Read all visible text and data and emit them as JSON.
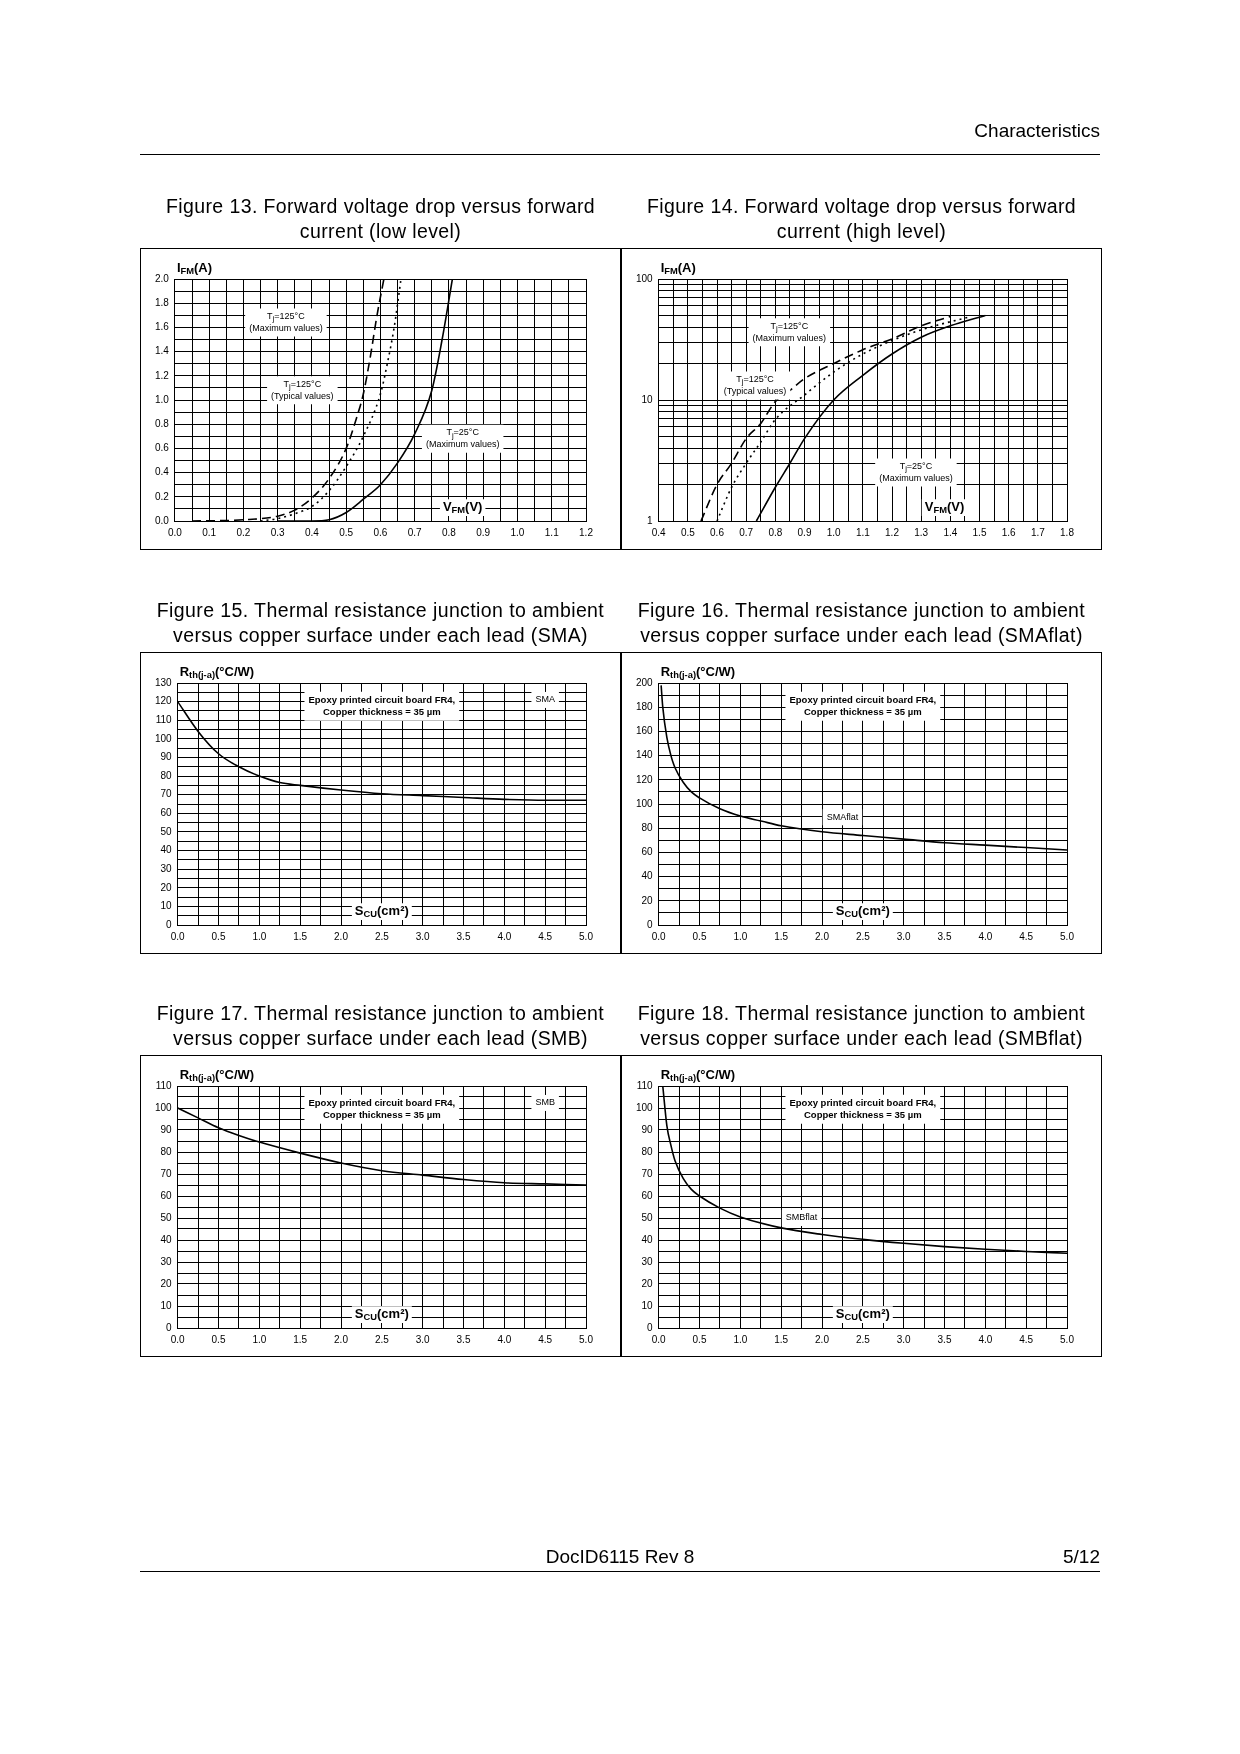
{
  "chart_data": [
    {
      "type": "line",
      "title": "Figure 13. Forward voltage drop versus forward current (low level)",
      "xlabel": "V$_{FM}$(V)",
      "ylabel": "I$_{FM}$(A)",
      "grid": true,
      "xlim": [
        0,
        1.2
      ],
      "ylim": [
        0,
        2
      ],
      "xticks": [
        {
          "value": 0,
          "label": "0.0"
        },
        {
          "value": 0.05,
          "label": null
        },
        0.1,
        {
          "value": 0.15,
          "label": null
        },
        0.2,
        {
          "value": 0.25,
          "label": null
        },
        0.3,
        {
          "value": 0.35,
          "label": null
        },
        0.4,
        {
          "value": 0.45,
          "label": null
        },
        0.5,
        {
          "value": 0.55,
          "label": null
        },
        0.6,
        {
          "value": 0.65,
          "label": null
        },
        0.7,
        {
          "value": 0.75,
          "label": null
        },
        0.8,
        {
          "value": 0.85,
          "label": null
        },
        0.9,
        {
          "value": 0.95,
          "label": null
        },
        {
          "value": 1,
          "label": "1.0"
        },
        {
          "value": 1.05,
          "label": null
        },
        1.1,
        {
          "value": 1.15,
          "label": null
        },
        1.2
      ],
      "yticks": [
        {
          "value": 0,
          "label": "0.0"
        },
        {
          "value": 0.1,
          "label": null
        },
        0.2,
        {
          "value": 0.3,
          "label": null
        },
        0.4,
        {
          "value": 0.5,
          "label": null
        },
        0.6,
        {
          "value": 0.7,
          "label": null
        },
        0.8,
        {
          "value": 0.9,
          "label": null
        },
        {
          "value": 1,
          "label": "1.0"
        },
        {
          "value": 1.1,
          "label": null
        },
        1.2,
        {
          "value": 1.3,
          "label": null
        },
        1.4,
        {
          "value": 1.5,
          "label": null
        },
        1.6,
        {
          "value": 1.7,
          "label": null
        },
        1.8,
        {
          "value": 1.9,
          "label": null
        },
        {
          "value": 2,
          "label": "2.0"
        }
      ],
      "series": [
        {
          "color": "#000000",
          "line_style": "dashed",
          "x": [
            0.05,
            0.2,
            0.3,
            0.35,
            0.4,
            0.45,
            0.5,
            0.53,
            0.55,
            0.57,
            0.59,
            0.61
          ],
          "values": [
            0,
            0.01,
            0.04,
            0.09,
            0.19,
            0.35,
            0.6,
            0.85,
            1.05,
            1.35,
            1.7,
            2.0
          ]
        },
        {
          "color": "#000000",
          "line_style": "dotted",
          "x": [
            0.25,
            0.3,
            0.35,
            0.4,
            0.45,
            0.5,
            0.55,
            0.6,
            0.62,
            0.64,
            0.66
          ],
          "values": [
            0,
            0.02,
            0.06,
            0.12,
            0.25,
            0.45,
            0.7,
            1.05,
            1.3,
            1.6,
            2.0
          ]
        },
        {
          "color": "#000000",
          "line_style": "solid",
          "x": [
            0.3,
            0.4,
            0.45,
            0.5,
            0.55,
            0.6,
            0.65,
            0.7,
            0.75,
            0.78,
            0.81
          ],
          "values": [
            0,
            0,
            0.01,
            0.07,
            0.18,
            0.3,
            0.48,
            0.72,
            1.08,
            1.5,
            2.0
          ]
        }
      ],
      "annotations": [
        "Characteristics",
        "T$_{j}$=125°C\n(Maximum values)",
        "T$_{j}$=125°C\n(Typical values)",
        "T$_{j}$=25°C\n(Maximum values)"
      ]
    },
    {
      "type": "line",
      "title": "Figure 14. Forward voltage drop versus forward current (high level)",
      "xlabel": "V$_{FM}$(V)",
      "ylabel": "I$_{FM}$(A)",
      "grid": true,
      "log": "y",
      "xlim": [
        0.4,
        1.8
      ],
      "ylim": [
        1,
        100
      ],
      "xticks": [
        0.4,
        {
          "value": 0.45,
          "label": null
        },
        0.5,
        {
          "value": 0.55,
          "label": null
        },
        0.6,
        {
          "value": 0.65,
          "label": null
        },
        0.7,
        {
          "value": 0.75,
          "label": null
        },
        0.8,
        {
          "value": 0.85,
          "label": null
        },
        0.9,
        {
          "value": 0.95,
          "label": null
        },
        {
          "value": 1,
          "label": "1.0"
        },
        {
          "value": 1.05,
          "label": null
        },
        1.1,
        {
          "value": 1.15,
          "label": null
        },
        1.2,
        {
          "value": 1.25,
          "label": null
        },
        1.3,
        {
          "value": 1.35,
          "label": null
        },
        1.4,
        {
          "value": 1.45,
          "label": null
        },
        1.5,
        {
          "value": 1.55,
          "label": null
        },
        1.6,
        {
          "value": 1.65,
          "label": null
        },
        1.7,
        {
          "value": 1.75,
          "label": null
        },
        1.8
      ],
      "yticks": [
        1,
        {
          "value": 2,
          "label": null
        },
        {
          "value": 3,
          "label": null
        },
        {
          "value": 4,
          "label": null
        },
        {
          "value": 5,
          "label": null
        },
        {
          "value": 6,
          "label": null
        },
        {
          "value": 7,
          "label": null
        },
        {
          "value": 8,
          "label": null
        },
        {
          "value": 9,
          "label": null
        },
        10,
        {
          "value": 20,
          "label": null
        },
        {
          "value": 30,
          "label": null
        },
        {
          "value": 40,
          "label": null
        },
        {
          "value": 50,
          "label": null
        },
        {
          "value": 60,
          "label": null
        },
        {
          "value": 70,
          "label": null
        },
        {
          "value": 80,
          "label": null
        },
        {
          "value": 90,
          "label": null
        },
        100
      ],
      "series": [
        {
          "color": "#000000",
          "line_style": "dashed",
          "x": [
            0.545,
            0.6,
            0.65,
            0.7,
            0.75,
            0.8,
            0.85,
            0.9,
            1.0,
            1.1,
            1.2,
            1.3,
            1.4
          ],
          "values": [
            1,
            2,
            3,
            4.8,
            6.4,
            9.7,
            12,
            15,
            20,
            26,
            32,
            41,
            49
          ]
        },
        {
          "color": "#000000",
          "line_style": "dotted",
          "x": [
            0.6,
            0.65,
            0.7,
            0.75,
            0.8,
            0.9,
            1.0,
            1.1,
            1.2,
            1.3,
            1.47
          ],
          "values": [
            1,
            1.9,
            3,
            4.5,
            6.9,
            11,
            17,
            24,
            31,
            38,
            49
          ]
        },
        {
          "color": "#000000",
          "line_style": "solid",
          "x": [
            0.735,
            0.8,
            0.85,
            0.9,
            1.0,
            1.1,
            1.2,
            1.3,
            1.4,
            1.52
          ],
          "values": [
            1,
            1.9,
            3,
            4.8,
            10,
            16,
            24,
            33,
            41,
            50
          ]
        }
      ],
      "annotations": [
        "T$_{j}$=125°C\n(Maximum values)",
        "T$_{j}$=125°C\n(Typical values)",
        "T$_{j}$=25°C\n(Maximum values)"
      ]
    },
    {
      "type": "line",
      "title": "Figure 15. Thermal resistance junction to ambient versus copper surface under each lead (SMA)",
      "xlabel": "S$_{CU}$(cm²)",
      "ylabel": "R$_{th(j-a)}$(°C/W)",
      "grid": true,
      "xlim": [
        0,
        5
      ],
      "ylim": [
        0,
        130
      ],
      "xticks": [
        {
          "value": 0,
          "label": "0.0"
        },
        {
          "value": 0.25,
          "label": null
        },
        0.5,
        {
          "value": 0.75,
          "label": null
        },
        {
          "value": 1,
          "label": "1.0"
        },
        {
          "value": 1.25,
          "label": null
        },
        1.5,
        {
          "value": 1.75,
          "label": null
        },
        {
          "value": 2,
          "label": "2.0"
        },
        {
          "value": 2.25,
          "label": null
        },
        2.5,
        {
          "value": 2.75,
          "label": null
        },
        {
          "value": 3,
          "label": "3.0"
        },
        {
          "value": 3.25,
          "label": null
        },
        3.5,
        {
          "value": 3.75,
          "label": null
        },
        {
          "value": 4,
          "label": "4.0"
        },
        {
          "value": 4.25,
          "label": null
        },
        4.5,
        {
          "value": 4.75,
          "label": null
        },
        {
          "value": 5,
          "label": "5.0"
        }
      ],
      "yticks": [
        0,
        {
          "value": 5,
          "label": null
        },
        10,
        {
          "value": 15,
          "label": null
        },
        20,
        {
          "value": 25,
          "label": null
        },
        30,
        {
          "value": 35,
          "label": null
        },
        40,
        {
          "value": 45,
          "label": null
        },
        50,
        {
          "value": 55,
          "label": null
        },
        60,
        {
          "value": 65,
          "label": null
        },
        70,
        {
          "value": 75,
          "label": null
        },
        80,
        {
          "value": 85,
          "label": null
        },
        90,
        {
          "value": 95,
          "label": null
        },
        100,
        {
          "value": 105,
          "label": null
        },
        110,
        {
          "value": 115,
          "label": null
        },
        120,
        {
          "value": 125,
          "label": null
        },
        130
      ],
      "series": [
        {
          "color": "#000000",
          "line_style": "solid",
          "x": [
            0,
            0.25,
            0.5,
            0.75,
            1,
            1.25,
            1.5,
            2,
            2.5,
            3,
            3.5,
            4,
            4.5,
            5
          ],
          "values": [
            120,
            104,
            92,
            85,
            80,
            76.5,
            75,
            72.5,
            70.5,
            69.5,
            68.5,
            67.5,
            67,
            67
          ]
        }
      ],
      "annotations": [
        "Epoxy printed circuit board FR4,\nCopper thickness = 35 µm",
        "SMA"
      ]
    },
    {
      "type": "line",
      "title": "Figure 16. Thermal resistance junction to ambient versus copper surface under each lead (SMAflat)",
      "xlabel": "S$_{CU}$(cm²)",
      "ylabel": "R$_{th(j-a)}$(°C/W)",
      "grid": true,
      "xlim": [
        0,
        5
      ],
      "ylim": [
        0,
        200
      ],
      "xticks": [
        {
          "value": 0,
          "label": "0.0"
        },
        {
          "value": 0.25,
          "label": null
        },
        0.5,
        {
          "value": 0.75,
          "label": null
        },
        {
          "value": 1,
          "label": "1.0"
        },
        {
          "value": 1.25,
          "label": null
        },
        1.5,
        {
          "value": 1.75,
          "label": null
        },
        {
          "value": 2,
          "label": "2.0"
        },
        {
          "value": 2.25,
          "label": null
        },
        2.5,
        {
          "value": 2.75,
          "label": null
        },
        {
          "value": 3,
          "label": "3.0"
        },
        {
          "value": 3.25,
          "label": null
        },
        3.5,
        {
          "value": 3.75,
          "label": null
        },
        {
          "value": 4,
          "label": "4.0"
        },
        {
          "value": 4.25,
          "label": null
        },
        4.5,
        {
          "value": 4.75,
          "label": null
        },
        {
          "value": 5,
          "label": "5.0"
        }
      ],
      "yticks": [
        0,
        {
          "value": 10,
          "label": null
        },
        20,
        {
          "value": 30,
          "label": null
        },
        40,
        {
          "value": 50,
          "label": null
        },
        60,
        {
          "value": 70,
          "label": null
        },
        80,
        {
          "value": 90,
          "label": null
        },
        100,
        {
          "value": 110,
          "label": null
        },
        120,
        {
          "value": 130,
          "label": null
        },
        140,
        {
          "value": 150,
          "label": null
        },
        160,
        {
          "value": 170,
          "label": null
        },
        180,
        {
          "value": 190,
          "label": null
        },
        200
      ],
      "series": [
        {
          "color": "#000000",
          "line_style": "solid",
          "x": [
            0.03,
            0.05,
            0.1,
            0.15,
            0.2,
            0.3,
            0.4,
            0.5,
            0.75,
            1,
            1.25,
            1.5,
            2,
            2.5,
            3,
            3.5,
            4,
            4.5,
            5
          ],
          "values": [
            198,
            180,
            155,
            140,
            130,
            118,
            110,
            105,
            96,
            90,
            86,
            82,
            77,
            74,
            71,
            68,
            66,
            64,
            62
          ]
        }
      ],
      "annotations": [
        "Epoxy printed circuit board FR4,\nCopper thickness = 35 µm",
        "SMAflat"
      ]
    },
    {
      "type": "line",
      "title": "Figure 17. Thermal resistance junction to ambient versus copper surface under each lead (SMB)",
      "xlabel": "S$_{CU}$(cm²)",
      "ylabel": "R$_{th(j-a)}$(°C/W)",
      "grid": true,
      "xlim": [
        0,
        5
      ],
      "ylim": [
        0,
        110
      ],
      "xticks": [
        {
          "value": 0,
          "label": "0.0"
        },
        {
          "value": 0.25,
          "label": null
        },
        0.5,
        {
          "value": 0.75,
          "label": null
        },
        {
          "value": 1,
          "label": "1.0"
        },
        {
          "value": 1.25,
          "label": null
        },
        1.5,
        {
          "value": 1.75,
          "label": null
        },
        {
          "value": 2,
          "label": "2.0"
        },
        {
          "value": 2.25,
          "label": null
        },
        2.5,
        {
          "value": 2.75,
          "label": null
        },
        {
          "value": 3,
          "label": "3.0"
        },
        {
          "value": 3.25,
          "label": null
        },
        3.5,
        {
          "value": 3.75,
          "label": null
        },
        {
          "value": 4,
          "label": "4.0"
        },
        {
          "value": 4.25,
          "label": null
        },
        4.5,
        {
          "value": 4.75,
          "label": null
        },
        {
          "value": 5,
          "label": "5.0"
        }
      ],
      "yticks": [
        0,
        {
          "value": 5,
          "label": null
        },
        10,
        {
          "value": 15,
          "label": null
        },
        20,
        {
          "value": 25,
          "label": null
        },
        30,
        {
          "value": 35,
          "label": null
        },
        40,
        {
          "value": 45,
          "label": null
        },
        50,
        {
          "value": 55,
          "label": null
        },
        60,
        {
          "value": 65,
          "label": null
        },
        70,
        {
          "value": 75,
          "label": null
        },
        80,
        {
          "value": 85,
          "label": null
        },
        90,
        {
          "value": 95,
          "label": null
        },
        100,
        {
          "value": 105,
          "label": null
        },
        110
      ],
      "series": [
        {
          "color": "#000000",
          "line_style": "solid",
          "x": [
            0,
            0.25,
            0.5,
            0.75,
            1,
            1.5,
            2,
            2.5,
            3,
            3.5,
            4,
            4.5,
            5
          ],
          "values": [
            100,
            95.5,
            91,
            87.5,
            84.5,
            79.5,
            75,
            71.5,
            69.5,
            67.5,
            66,
            65.5,
            65
          ]
        }
      ],
      "annotations": [
        "Epoxy printed circuit board FR4,\nCopper thickness = 35 µm",
        "SMB"
      ]
    },
    {
      "type": "line",
      "title": "Figure 18. Thermal resistance junction to ambient versus copper surface under each lead (SMBflat)",
      "xlabel": "S$_{CU}$(cm²)",
      "ylabel": "R$_{th(j-a)}$(°C/W)",
      "grid": true,
      "xlim": [
        0,
        5
      ],
      "ylim": [
        0,
        110
      ],
      "xticks": [
        {
          "value": 0,
          "label": "0.0"
        },
        {
          "value": 0.25,
          "label": null
        },
        0.5,
        {
          "value": 0.75,
          "label": null
        },
        {
          "value": 1,
          "label": "1.0"
        },
        {
          "value": 1.25,
          "label": null
        },
        1.5,
        {
          "value": 1.75,
          "label": null
        },
        {
          "value": 2,
          "label": "2.0"
        },
        {
          "value": 2.25,
          "label": null
        },
        2.5,
        {
          "value": 2.75,
          "label": null
        },
        {
          "value": 3,
          "label": "3.0"
        },
        {
          "value": 3.25,
          "label": null
        },
        3.5,
        {
          "value": 3.75,
          "label": null
        },
        {
          "value": 4,
          "label": "4.0"
        },
        {
          "value": 4.25,
          "label": null
        },
        4.5,
        {
          "value": 4.75,
          "label": null
        },
        {
          "value": 5,
          "label": "5.0"
        }
      ],
      "yticks": [
        0,
        {
          "value": 5,
          "label": null
        },
        10,
        {
          "value": 15,
          "label": null
        },
        20,
        {
          "value": 25,
          "label": null
        },
        30,
        {
          "value": 35,
          "label": null
        },
        40,
        {
          "value": 45,
          "label": null
        },
        50,
        {
          "value": 55,
          "label": null
        },
        60,
        {
          "value": 65,
          "label": null
        },
        70,
        {
          "value": 75,
          "label": null
        },
        80,
        {
          "value": 85,
          "label": null
        },
        90,
        {
          "value": 95,
          "label": null
        },
        100,
        {
          "value": 105,
          "label": null
        },
        110
      ],
      "series": [
        {
          "color": "#000000",
          "line_style": "solid",
          "x": [
            0.05,
            0.1,
            0.15,
            0.2,
            0.3,
            0.4,
            0.5,
            0.75,
            1,
            1.5,
            2,
            2.5,
            3,
            3.5,
            4,
            4.5,
            5
          ],
          "values": [
            110,
            92,
            83,
            76,
            68,
            63,
            60,
            54.5,
            50.5,
            45.5,
            42.5,
            40.3,
            38.5,
            37,
            35.8,
            34.8,
            34
          ]
        }
      ],
      "annotations": [
        "DocID6115 Rev 8",
        "5/12",
        "Epoxy printed circuit board FR4,\nCopper thickness = 35 µm",
        "SMBflat"
      ]
    }
  ]
}
